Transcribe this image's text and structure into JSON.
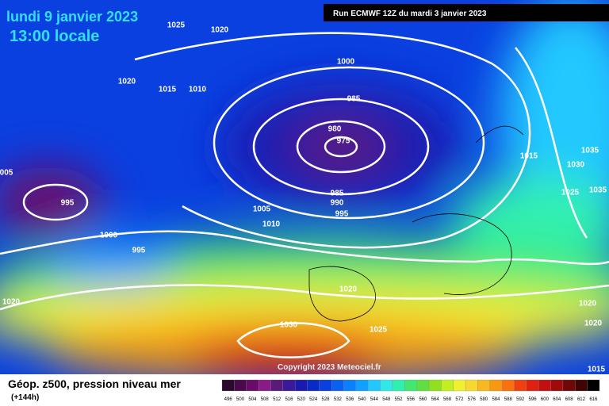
{
  "header": {
    "date": "lundi 9 janvier 2023",
    "time": "13:00 locale",
    "run": "Run ECMWF 12Z du mardi 3 janvier 2023"
  },
  "isobar_labels": [
    "1025",
    "1020",
    "1020",
    "1015",
    "1010",
    "1000",
    "985",
    "980",
    "975",
    "005",
    "995",
    "1005",
    "1010",
    "1000",
    "995",
    "985",
    "990",
    "995",
    "1015",
    "1030",
    "1035",
    "1035",
    "1025",
    "1020",
    "1020",
    "1030",
    "1025",
    "1020",
    "1020",
    "1015"
  ],
  "copyright": "Copyright 2023 Meteociel.fr",
  "footer": {
    "title": "Géop. z500, pression niveau mer",
    "lead": "(+144h)"
  },
  "scale": {
    "values": [
      496,
      500,
      504,
      508,
      512,
      516,
      520,
      524,
      528,
      532,
      536,
      540,
      544,
      548,
      552,
      556,
      560,
      564,
      568,
      572,
      576,
      580,
      584,
      588,
      592,
      596,
      600,
      604,
      608,
      612,
      616
    ],
    "colors": [
      "#2a0a2a",
      "#4a0a4a",
      "#6a0a6a",
      "#8a1a8a",
      "#5a1a7a",
      "#3a1a9a",
      "#1a1ab0",
      "#0a2ac8",
      "#0a40e0",
      "#0a60f0",
      "#0a80ff",
      "#10a0ff",
      "#20c8ff",
      "#30e8e8",
      "#30f0b0",
      "#40e870",
      "#60e040",
      "#90e020",
      "#c0f020",
      "#f0f030",
      "#f8d830",
      "#f8b820",
      "#f89810",
      "#f87010",
      "#f04010",
      "#e02010",
      "#c01010",
      "#a00a0a",
      "#700808",
      "#400404",
      "#000000"
    ]
  }
}
